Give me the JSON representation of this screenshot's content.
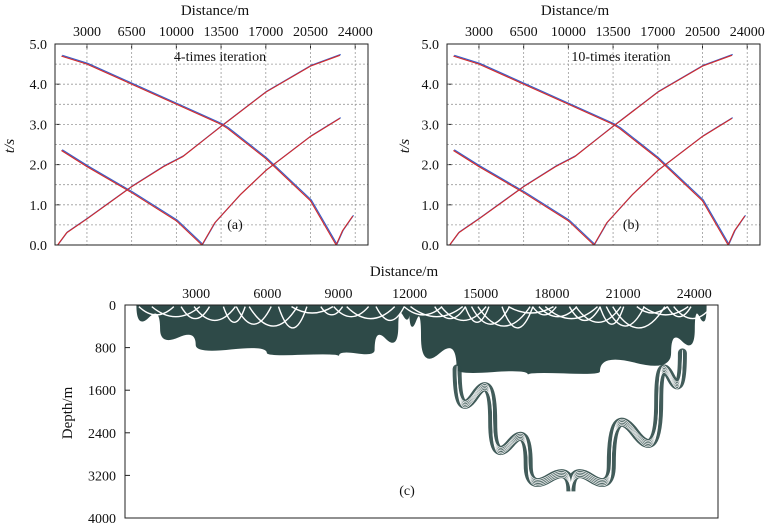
{
  "chart_data": [
    {
      "type": "line",
      "panel_tag": "(a)",
      "annotation": "4-times iteration",
      "xlabel": "Distance/m",
      "ylabel": "t/s",
      "xticks": [
        "3000",
        "6500",
        "10000",
        "13500",
        "17000",
        "20500",
        "24000"
      ],
      "yticks": [
        "0.0",
        "1.0",
        "2.0",
        "3.0",
        "4.0",
        "5.0"
      ],
      "xlim": [
        500,
        25000
      ],
      "ylim": [
        0,
        5.0
      ],
      "grid": true,
      "colors": {
        "observed": "#d42a2a",
        "computed": "#3c5fc8"
      },
      "series": [
        {
          "x": [
            1000,
            3000,
            6500,
            10000,
            13500,
            14000,
            17000,
            20500,
            22500
          ],
          "y": [
            4.7,
            4.5,
            4.0,
            3.5,
            3.0,
            2.9,
            2.15,
            1.1,
            0.0
          ]
        },
        {
          "x": [
            1000,
            3000,
            6500,
            10000,
            12000
          ],
          "y": [
            2.35,
            1.95,
            1.3,
            0.6,
            0.0
          ]
        },
        {
          "x": [
            700,
            1400,
            3000,
            6500,
            9000,
            10500,
            12500,
            13500,
            17000,
            20500,
            22800
          ],
          "y": [
            0.0,
            0.3,
            0.65,
            1.45,
            1.95,
            2.2,
            2.7,
            2.95,
            3.8,
            4.45,
            4.72
          ]
        },
        {
          "x": [
            12000,
            13000,
            15000,
            17000,
            20500,
            22800
          ],
          "y": [
            0.0,
            0.55,
            1.25,
            1.85,
            2.7,
            3.15
          ]
        },
        {
          "x": [
            22500,
            23000,
            23800
          ],
          "y": [
            0.0,
            0.35,
            0.72
          ]
        }
      ]
    },
    {
      "type": "line",
      "panel_tag": "(b)",
      "annotation": "10-times iteration",
      "xlabel": "Distance/m",
      "ylabel": "t/s",
      "xticks": [
        "3000",
        "6500",
        "10000",
        "13500",
        "17000",
        "20500",
        "24000"
      ],
      "yticks": [
        "0.0",
        "1.0",
        "2.0",
        "3.0",
        "4.0",
        "5.0"
      ],
      "xlim": [
        500,
        25000
      ],
      "ylim": [
        0,
        5.0
      ],
      "grid": true,
      "colors": {
        "observed": "#d42a2a",
        "computed": "#3c5fc8"
      },
      "series": [
        {
          "x": [
            1000,
            3000,
            6500,
            10000,
            13500,
            14000,
            17000,
            20500,
            22500
          ],
          "y": [
            4.7,
            4.5,
            4.0,
            3.5,
            3.0,
            2.9,
            2.15,
            1.1,
            0.0
          ]
        },
        {
          "x": [
            1000,
            3000,
            6500,
            10000,
            12000
          ],
          "y": [
            2.35,
            1.95,
            1.3,
            0.6,
            0.0
          ]
        },
        {
          "x": [
            700,
            1400,
            3000,
            6500,
            9000,
            10500,
            12500,
            13500,
            17000,
            20500,
            22800
          ],
          "y": [
            0.0,
            0.3,
            0.65,
            1.45,
            1.95,
            2.2,
            2.7,
            2.95,
            3.8,
            4.45,
            4.72
          ]
        },
        {
          "x": [
            12000,
            13000,
            15000,
            17000,
            20500,
            22800
          ],
          "y": [
            0.0,
            0.55,
            1.25,
            1.85,
            2.7,
            3.15
          ]
        },
        {
          "x": [
            22500,
            23000,
            23800
          ],
          "y": [
            0.0,
            0.35,
            0.72
          ]
        }
      ]
    },
    {
      "type": "area",
      "panel_tag": "(c)",
      "xlabel": "Distance/m",
      "ylabel": "Depth/m",
      "xticks": [
        "3000",
        "6000",
        "9000",
        "12000",
        "15000",
        "18000",
        "21000",
        "24000"
      ],
      "yticks": [
        "0",
        "800",
        "1600",
        "2400",
        "3200",
        "4000"
      ],
      "xlim": [
        0,
        25000
      ],
      "ylim": [
        0,
        4000
      ],
      "y_inverted": true,
      "grid": false,
      "colors": {
        "rays": "#2e4a48",
        "gaps": "#ffffff"
      },
      "regions": [
        {
          "name": "left-ray-coverage",
          "x": [
            500,
            1500,
            3000,
            6000,
            9000,
            10500,
            11500,
            12000
          ],
          "depth": [
            0,
            450,
            750,
            900,
            950,
            850,
            400,
            0
          ]
        },
        {
          "name": "right-ray-coverage",
          "x": [
            12000,
            12500,
            14000,
            17000,
            20000,
            23000,
            24000,
            24500
          ],
          "depth": [
            0,
            600,
            1200,
            1300,
            1250,
            900,
            450,
            0
          ]
        },
        {
          "name": "deep-ray-band",
          "x": [
            14000,
            15500,
            17000,
            18800,
            20500,
            22500,
            23500
          ],
          "depth": [
            1200,
            2200,
            3000,
            3500,
            3000,
            1800,
            900
          ]
        }
      ]
    }
  ]
}
